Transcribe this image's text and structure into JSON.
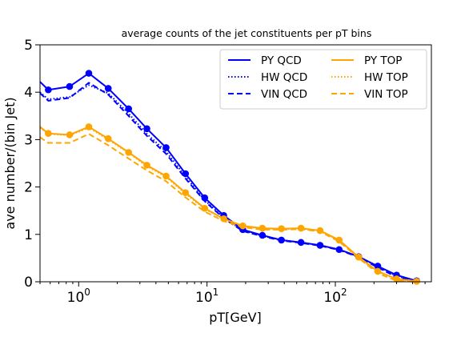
{
  "chart_data": {
    "type": "line",
    "title": "average counts of the jet constituents per pT bins",
    "xlabel": "pT[GeV]",
    "ylabel": "ave number/(bin Jet)",
    "xscale": "log",
    "xlim": [
      0.5,
      560
    ],
    "ylim": [
      0,
      5
    ],
    "x_ticks": [
      {
        "value": 1,
        "base": "10",
        "exp": "0"
      },
      {
        "value": 10,
        "base": "10",
        "exp": "1"
      },
      {
        "value": 100,
        "base": "10",
        "exp": "2"
      }
    ],
    "y_ticks": [
      "0",
      "1",
      "2",
      "3",
      "4",
      "5"
    ],
    "grid": false,
    "legend_position": "top-right",
    "legend_columns": 2,
    "colors": {
      "qcd": "#0000ff",
      "top": "#ffa500"
    },
    "series": [
      {
        "name": "PY QCD",
        "color": "#0000ff",
        "linestyle": "solid",
        "markers": true,
        "x": [
          0.5,
          0.58,
          0.85,
          1.2,
          1.7,
          2.45,
          3.4,
          4.8,
          6.8,
          9.6,
          13.5,
          19,
          27,
          38,
          54,
          76,
          107,
          152,
          214,
          300,
          430
        ],
        "y": [
          4.22,
          4.05,
          4.12,
          4.4,
          4.08,
          3.65,
          3.23,
          2.83,
          2.28,
          1.77,
          1.4,
          1.1,
          0.98,
          0.88,
          0.83,
          0.77,
          0.68,
          0.53,
          0.33,
          0.14,
          0.02
        ]
      },
      {
        "name": "HW QCD",
        "color": "#0000ff",
        "linestyle": "dotted",
        "markers": false,
        "x": [
          0.5,
          0.58,
          0.85,
          1.2,
          1.7,
          2.45,
          3.4,
          4.8,
          6.8,
          9.6,
          13.5,
          19,
          27,
          38,
          54,
          76,
          107,
          152,
          214,
          300,
          430
        ],
        "y": [
          4.0,
          3.85,
          3.9,
          4.15,
          3.98,
          3.55,
          3.12,
          2.75,
          2.22,
          1.72,
          1.36,
          1.08,
          0.97,
          0.88,
          0.83,
          0.77,
          0.68,
          0.53,
          0.32,
          0.12,
          0.01
        ]
      },
      {
        "name": "VIN QCD",
        "color": "#0000ff",
        "linestyle": "dashed",
        "markers": false,
        "x": [
          0.5,
          0.58,
          0.85,
          1.2,
          1.7,
          2.45,
          3.4,
          4.8,
          6.8,
          9.6,
          13.5,
          19,
          27,
          38,
          54,
          76,
          107,
          152,
          214,
          300,
          430
        ],
        "y": [
          3.98,
          3.82,
          3.88,
          4.2,
          3.95,
          3.5,
          3.08,
          2.7,
          2.18,
          1.7,
          1.34,
          1.07,
          0.96,
          0.87,
          0.82,
          0.76,
          0.67,
          0.52,
          0.3,
          0.1,
          0.0
        ]
      },
      {
        "name": "PY TOP",
        "color": "#ffa500",
        "linestyle": "solid",
        "markers": true,
        "x": [
          0.5,
          0.58,
          0.85,
          1.2,
          1.7,
          2.45,
          3.4,
          4.8,
          6.8,
          9.6,
          13.5,
          19,
          27,
          38,
          54,
          76,
          107,
          152,
          214,
          300,
          430
        ],
        "y": [
          3.27,
          3.13,
          3.1,
          3.27,
          3.02,
          2.73,
          2.46,
          2.23,
          1.88,
          1.55,
          1.33,
          1.18,
          1.13,
          1.12,
          1.13,
          1.08,
          0.88,
          0.52,
          0.22,
          0.06,
          0.01
        ]
      },
      {
        "name": "HW TOP",
        "color": "#ffa500",
        "linestyle": "dotted",
        "markers": false,
        "x": [
          0.5,
          0.58,
          0.85,
          1.2,
          1.7,
          2.45,
          3.4,
          4.8,
          6.8,
          9.6,
          13.5,
          19,
          27,
          38,
          54,
          76,
          107,
          152,
          214,
          300,
          430
        ],
        "y": [
          3.25,
          3.12,
          3.09,
          3.25,
          3.0,
          2.72,
          2.44,
          2.21,
          1.86,
          1.54,
          1.32,
          1.17,
          1.12,
          1.11,
          1.12,
          1.07,
          0.87,
          0.51,
          0.21,
          0.05,
          0.0
        ]
      },
      {
        "name": "VIN TOP",
        "color": "#ffa500",
        "linestyle": "dashed",
        "markers": false,
        "x": [
          0.5,
          0.58,
          0.85,
          1.2,
          1.7,
          2.45,
          3.4,
          4.8,
          6.8,
          9.6,
          13.5,
          19,
          27,
          38,
          54,
          76,
          107,
          152,
          214,
          300,
          430
        ],
        "y": [
          3.05,
          2.93,
          2.93,
          3.12,
          2.88,
          2.6,
          2.35,
          2.12,
          1.78,
          1.48,
          1.28,
          1.15,
          1.1,
          1.1,
          1.11,
          1.06,
          0.85,
          0.5,
          0.18,
          0.02,
          0.0
        ]
      }
    ]
  }
}
